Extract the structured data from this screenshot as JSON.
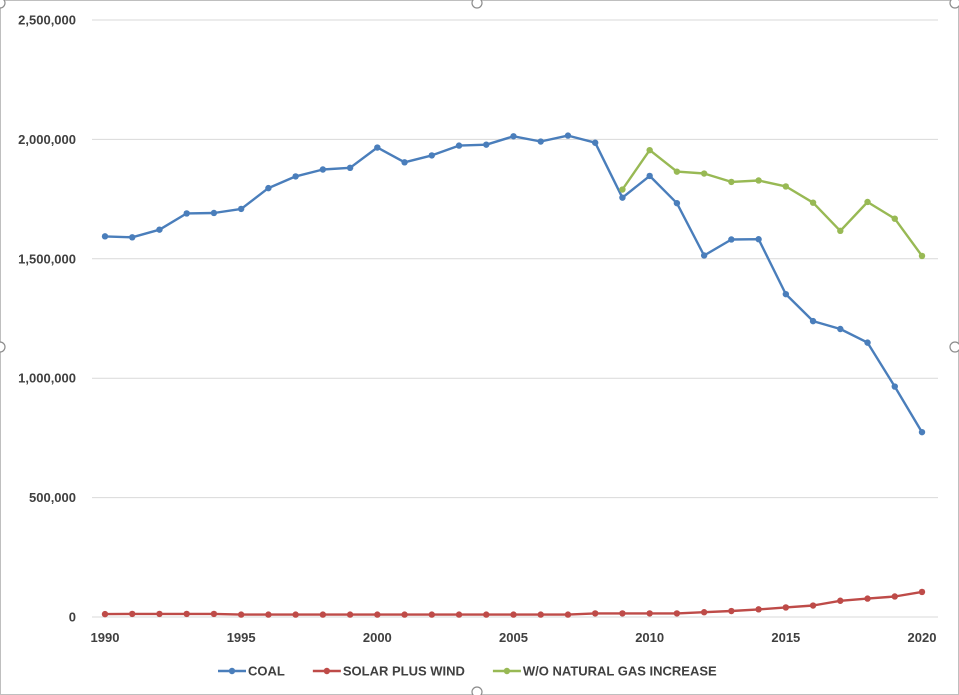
{
  "chart_data": {
    "type": "line",
    "title": "",
    "xlabel": "",
    "ylabel": "",
    "xlim": [
      1990,
      2020
    ],
    "ylim": [
      0,
      2500000
    ],
    "x_ticks": [
      1990,
      1995,
      2000,
      2005,
      2010,
      2015,
      2020
    ],
    "x_tick_labels": [
      "1990",
      "1995",
      "2000",
      "2005",
      "2010",
      "2015",
      "2020"
    ],
    "y_ticks": [
      0,
      500000,
      1000000,
      1500000,
      2000000,
      2500000
    ],
    "y_tick_labels": [
      "0",
      "500,000",
      "1,000,000",
      "1,500,000",
      "2,000,000",
      "2,500,000"
    ],
    "grid": true,
    "legend_position": "bottom",
    "series": [
      {
        "name": "COAL",
        "color": "#4a7ebb",
        "x": [
          1990,
          1991,
          1992,
          1993,
          1994,
          1995,
          1996,
          1997,
          1998,
          1999,
          2000,
          2001,
          2002,
          2003,
          2004,
          2005,
          2006,
          2007,
          2008,
          2009,
          2010,
          2011,
          2012,
          2013,
          2014,
          2015,
          2016,
          2017,
          2018,
          2019,
          2020
        ],
        "values": [
          1594000,
          1590000,
          1622000,
          1690000,
          1692000,
          1709000,
          1796000,
          1845000,
          1874000,
          1881000,
          1966000,
          1904000,
          1933000,
          1974000,
          1978000,
          2013000,
          1991000,
          2016000,
          1986000,
          1756000,
          1847000,
          1733000,
          1514000,
          1581000,
          1582000,
          1352000,
          1239000,
          1206000,
          1149000,
          965000,
          774000
        ]
      },
      {
        "name": "SOLAR PLUS WIND",
        "color": "#be4b48",
        "x": [
          1990,
          1991,
          1992,
          1993,
          1994,
          1995,
          1996,
          1997,
          1998,
          1999,
          2000,
          2001,
          2002,
          2003,
          2004,
          2005,
          2006,
          2007,
          2008,
          2009,
          2010,
          2011,
          2012,
          2013,
          2014,
          2015,
          2016,
          2017,
          2018,
          2019,
          2020
        ],
        "values": [
          12000,
          13000,
          13000,
          13000,
          13000,
          10000,
          10000,
          10000,
          10000,
          10000,
          10000,
          10000,
          10000,
          10000,
          10000,
          10000,
          10000,
          10000,
          15000,
          15000,
          15000,
          15000,
          20000,
          25000,
          32000,
          40000,
          48000,
          68000,
          77000,
          86000,
          105000
        ]
      },
      {
        "name": "W/O NATURAL GAS INCREASE",
        "color": "#98b954",
        "x": [
          2009,
          2010,
          2011,
          2012,
          2013,
          2014,
          2015,
          2016,
          2017,
          2018,
          2019,
          2020
        ],
        "values": [
          1790000,
          1955000,
          1865000,
          1857000,
          1822000,
          1828000,
          1803000,
          1735000,
          1617000,
          1738000,
          1668000,
          1512000
        ]
      }
    ]
  }
}
